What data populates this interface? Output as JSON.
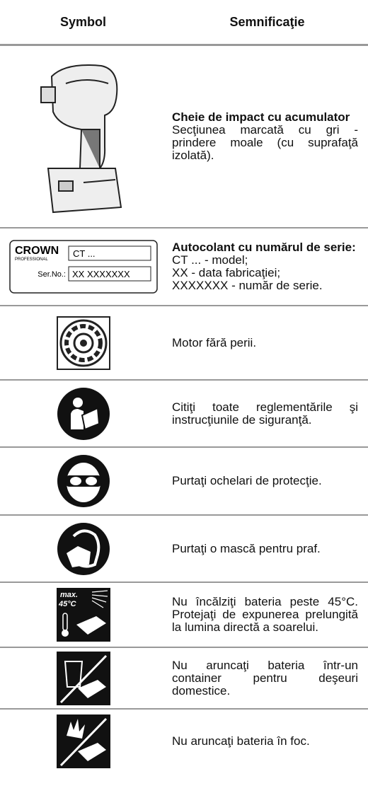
{
  "header": {
    "symbol": "Symbol",
    "meaning": "Semnificaţie"
  },
  "rows": [
    {
      "title": "Cheie de impact cu acumulator",
      "text": "Secţiunea marcată cu gri - prindere moale (cu suprafaţă izolată)."
    },
    {
      "title": "Autocolant cu numărul de serie:",
      "lines": [
        "CT ... - model;",
        "XX - data fabricaţiei;",
        "XXXXXXX - număr de serie."
      ],
      "label": {
        "brand": "CROWN",
        "sub": "PROFESSIONAL",
        "model": "CT ...",
        "serial_label": "Ser.No.:",
        "serial": "XX XXXXXXX"
      }
    },
    {
      "text": "Motor fără perii."
    },
    {
      "text": "Citiţi toate reglementările şi instrucţiunile de siguranţă."
    },
    {
      "text": "Purtaţi ochelari de protecţie."
    },
    {
      "text": "Purtaţi o mască pentru praf."
    },
    {
      "text": "Nu încălziţi bateria peste 45°C. Protejaţi de expunerea prelungită la lumina directă a soarelui.",
      "icon": {
        "max": "max.",
        "temp": "45°C"
      }
    },
    {
      "text": "Nu aruncaţi bateria într-un container pentru deşeuri domestice."
    },
    {
      "text": "Nu aruncaţi bateria în foc."
    }
  ]
}
